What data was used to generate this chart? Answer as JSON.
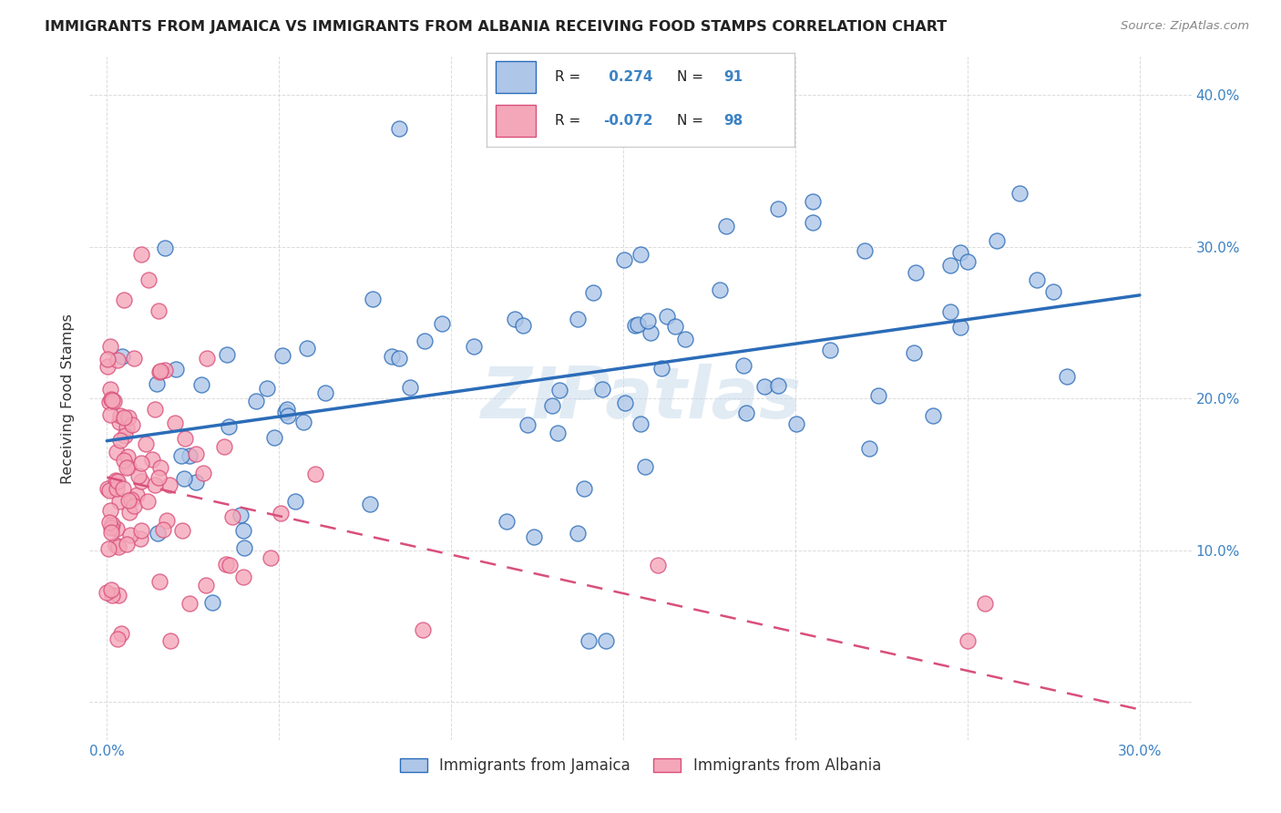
{
  "title": "IMMIGRANTS FROM JAMAICA VS IMMIGRANTS FROM ALBANIA RECEIVING FOOD STAMPS CORRELATION CHART",
  "source": "Source: ZipAtlas.com",
  "ylabel": "Receiving Food Stamps",
  "xlim": [
    -0.005,
    0.315
  ],
  "ylim": [
    -0.025,
    0.425
  ],
  "jamaica_color": "#aec6e8",
  "albania_color": "#f4a7b9",
  "jamaica_line_color": "#2b6cb8",
  "albania_line_color": "#d94f7a",
  "jamaica_R": 0.274,
  "jamaica_N": 91,
  "albania_R": -0.072,
  "albania_N": 98,
  "legend_jamaica_label": "Immigrants from Jamaica",
  "legend_albania_label": "Immigrants from Albania",
  "watermark": "ZIPatlas",
  "background_color": "#ffffff",
  "grid_color": "#cccccc",
  "jam_line_x0": 0.0,
  "jam_line_y0": 0.172,
  "jam_line_x1": 0.3,
  "jam_line_y1": 0.268,
  "alb_line_x0": 0.0,
  "alb_line_y0": 0.148,
  "alb_line_x1": 0.3,
  "alb_line_y1": -0.005
}
